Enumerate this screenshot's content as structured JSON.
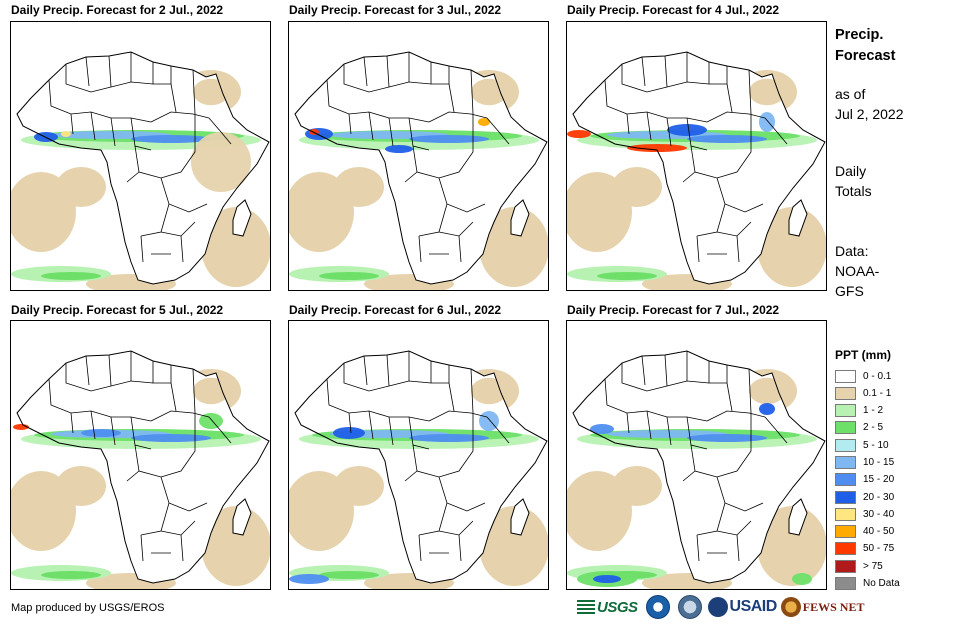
{
  "panels": [
    {
      "title": "Daily Precip. Forecast for 2 Jul., 2022"
    },
    {
      "title": "Daily Precip. Forecast for 3 Jul., 2022"
    },
    {
      "title": "Daily Precip. Forecast for 4 Jul., 2022"
    },
    {
      "title": "Daily Precip. Forecast for 5 Jul., 2022"
    },
    {
      "title": "Daily Precip. Forecast for 6 Jul., 2022"
    },
    {
      "title": "Daily Precip. Forecast for 7 Jul., 2022"
    }
  ],
  "sidebar": {
    "heading1": "Precip.",
    "heading2": "Forecast",
    "asof1": "as of",
    "asof2": "Jul 2, 2022",
    "daily1": "Daily",
    "daily2": "Totals",
    "data1": "Data:",
    "data2": "NOAA-",
    "data3": "GFS"
  },
  "legend": {
    "title": "PPT (mm)",
    "items": [
      {
        "label": "0 - 0.1",
        "color": "#ffffff"
      },
      {
        "label": "0.1 - 1",
        "color": "#e6d3ad"
      },
      {
        "label": "1 - 2",
        "color": "#b7f2b2"
      },
      {
        "label": "2 - 5",
        "color": "#6ee06a"
      },
      {
        "label": "5 - 10",
        "color": "#b2ecf0"
      },
      {
        "label": "10 - 15",
        "color": "#7fb7f2"
      },
      {
        "label": "15 - 20",
        "color": "#4f8ef0"
      },
      {
        "label": "20 - 30",
        "color": "#1f5fe8"
      },
      {
        "label": "30 - 40",
        "color": "#ffe680"
      },
      {
        "label": "40 - 50",
        "color": "#ffaa00"
      },
      {
        "label": "50 - 75",
        "color": "#ff3800"
      },
      {
        "label": "> 75",
        "color": "#b01a1a"
      },
      {
        "label": "No Data",
        "color": "#8c8c8c"
      }
    ]
  },
  "credit": "Map produced by USGS/EROS",
  "logos": {
    "usgs": "USGS",
    "usaid": "USAID",
    "fews": "FEWS NET"
  }
}
